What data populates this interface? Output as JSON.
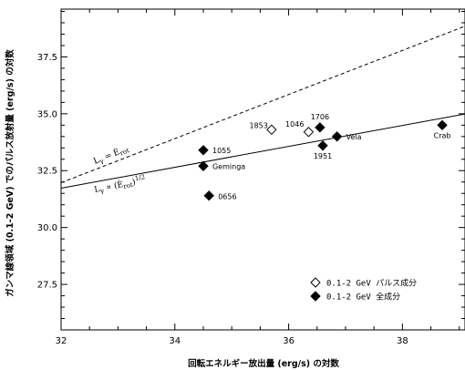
{
  "chart_data": {
    "type": "scatter",
    "xlabel": "回転エネルギー放出量 (erg/s) の対数",
    "ylabel": "ガンマ線領域 (0.1-2 GeV) でのパルス放射量 (erg/s) の対数",
    "xlim": [
      32,
      39.1
    ],
    "ylim": [
      25.5,
      39.6
    ],
    "x_ticks": [
      "32",
      "34",
      "36",
      "38"
    ],
    "y_ticks": [
      "27.5",
      "30.0",
      "32.5",
      "35.0",
      "37.5"
    ],
    "grid": false,
    "legend_position": "bottom-right",
    "series": [
      {
        "name": "0.1-2 GeV パルス成分",
        "marker": "open-diamond",
        "points": [
          {
            "label": "1853",
            "x": 35.7,
            "y": 34.3
          },
          {
            "label": "1046",
            "x": 36.35,
            "y": 34.2
          }
        ]
      },
      {
        "name": "0.1-2 GeV 全成分",
        "marker": "filled-diamond",
        "points": [
          {
            "label": "1055",
            "x": 34.5,
            "y": 33.4
          },
          {
            "label": "Geminga",
            "x": 34.5,
            "y": 32.7
          },
          {
            "label": "0656",
            "x": 34.6,
            "y": 31.4
          },
          {
            "label": "1706",
            "x": 36.55,
            "y": 34.4
          },
          {
            "label": "1951",
            "x": 36.6,
            "y": 33.6
          },
          {
            "label": "Vela",
            "x": 36.85,
            "y": 34.0
          },
          {
            "label": "Crab",
            "x": 38.7,
            "y": 34.5
          }
        ]
      }
    ],
    "lines": [
      {
        "label": "L_γ = Ė_rot",
        "style": "dashed",
        "x": [
          32,
          39.1
        ],
        "y": [
          31.97,
          38.85
        ]
      },
      {
        "label": "L_γ ∝ (Ė_rot)^1/2",
        "style": "solid",
        "x": [
          32,
          39.1
        ],
        "y": [
          31.73,
          34.99
        ]
      }
    ]
  }
}
